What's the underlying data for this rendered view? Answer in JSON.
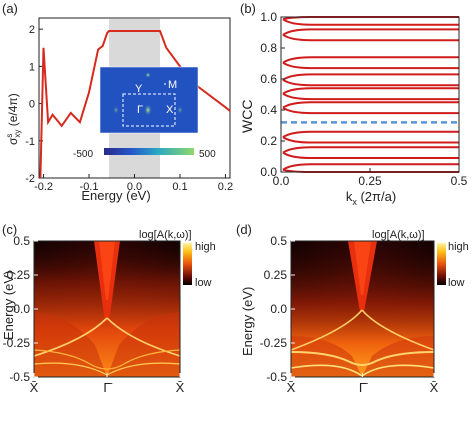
{
  "colors": {
    "red_curve": "#d62a1e",
    "wcc_line": "#d11c1c",
    "dashed": "#5a96d8",
    "shade": "#d9d9d9",
    "axis": "#222222",
    "map_bg": "#1e4fb8",
    "hot_low": "#000000",
    "hot_high": "#ffd84a"
  },
  "figure": {
    "panels": {
      "a": {
        "label": "(a)",
        "xlabel": "Energy (eV)",
        "ylabel_main": "σ",
        "ylabel_sup": "s",
        "ylabel_sub": "xy",
        "ylabel_unit": " (e/4π)",
        "inset": {
          "label_Y": "Y",
          "label_M": "M",
          "label_G": "Γ",
          "label_X": "X",
          "cbar_min": "-500",
          "cbar_max": "500"
        }
      },
      "b": {
        "label": "(b)",
        "ylabel": "WCC",
        "xlabel_k": "k",
        "xlabel_sub": "x",
        "xlabel_unit": " (2π/a)"
      },
      "c": {
        "label": "(c)",
        "legend_title": "log[A(k,ω)]",
        "legend_high": "high",
        "legend_low": "low",
        "ylabel": "Energy (eV)"
      },
      "d": {
        "label": "(d)",
        "legend_title": "log[A(k,ω)]",
        "legend_high": "high",
        "legend_low": "low",
        "ylabel": "Energy (eV)"
      }
    }
  },
  "chart_data": [
    {
      "panel": "a",
      "type": "line",
      "xlabel": "Energy (eV)",
      "ylabel": "σ^s_xy (e/4π)",
      "xlim": [
        -0.21,
        0.21
      ],
      "ylim": [
        -2.0,
        2.3
      ],
      "xticks": [
        "-0.2",
        "-0.1",
        "0.0",
        "0.1",
        "0.2"
      ],
      "yticks": [
        "-2",
        "-1",
        "0",
        "1",
        "2"
      ],
      "shaded_region": [
        -0.056,
        0.056
      ],
      "x": [
        -0.207,
        -0.2,
        -0.19,
        -0.18,
        -0.16,
        -0.14,
        -0.12,
        -0.1,
        -0.08,
        -0.07,
        -0.06,
        -0.056,
        0.056,
        0.07,
        0.1,
        0.14,
        0.2,
        0.21
      ],
      "y": [
        -2.0,
        1.5,
        -0.5,
        -0.3,
        -0.6,
        -0.25,
        -0.5,
        0.3,
        1.45,
        1.55,
        1.9,
        1.95,
        1.95,
        1.5,
        1.0,
        0.45,
        -0.1,
        -0.2
      ],
      "grid": false
    },
    {
      "panel": "b",
      "type": "line",
      "xlabel": "k_x (2π/a)",
      "ylabel": "WCC",
      "xlim": [
        0,
        0.5
      ],
      "ylim": [
        0,
        1.0
      ],
      "xticks": [
        "0.0",
        "0.25",
        "0.5"
      ],
      "yticks": [
        "0.0",
        "0.2",
        "0.4",
        "0.6",
        "0.8",
        "1.0"
      ],
      "reference_line_y": 0.32,
      "wcc_centers": [
        0.015,
        0.125,
        0.225,
        0.415,
        0.505,
        0.595,
        0.705,
        0.885,
        0.985
      ],
      "grid": false
    },
    {
      "panel": "c",
      "type": "heatmap",
      "ylabel": "Energy (eV)",
      "ylim": [
        -0.5,
        0.5
      ],
      "yticks": [
        "0.5",
        "0.25",
        "0.0",
        "-0.25",
        "-0.5"
      ],
      "xticks": [
        "X̄",
        "Γ̄",
        "X̄"
      ],
      "legend": [
        "log[A(k,ω)]",
        "high",
        "low"
      ],
      "dirac_point_energy": 0.05
    },
    {
      "panel": "d",
      "type": "heatmap",
      "ylabel": "Energy (eV)",
      "ylim": [
        -0.5,
        0.5
      ],
      "yticks": [
        "0.5",
        "0.25",
        "0.0",
        "-0.25",
        "-0.5"
      ],
      "xticks": [
        "X̄",
        "Γ̄",
        "X̄"
      ],
      "legend": [
        "log[A(k,ω)]",
        "high",
        "low"
      ],
      "dirac_point_energy": 0.1
    }
  ]
}
